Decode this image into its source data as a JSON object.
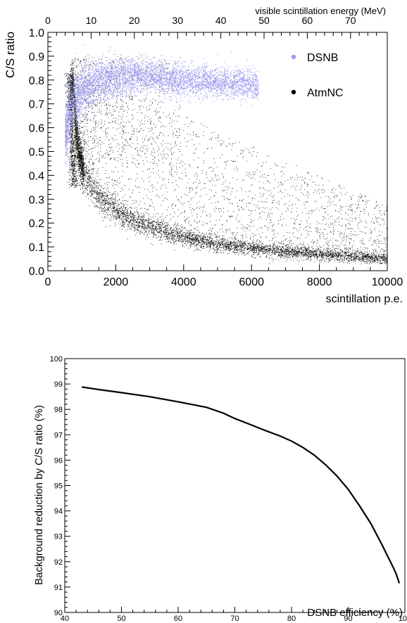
{
  "chart_data": [
    {
      "type": "scatter",
      "xlabel": "scintillation p.e.",
      "ylabel": "C/S ratio",
      "x2label": "visible scintillation energy (MeV)",
      "xlim": [
        0,
        10000
      ],
      "ylim": [
        0.0,
        1.0
      ],
      "x2lim": [
        0,
        78.5
      ],
      "xticks": [
        "0",
        "2000",
        "4000",
        "6000",
        "8000",
        "10000"
      ],
      "yticks": [
        "0.0",
        "0.1",
        "0.2",
        "0.3",
        "0.4",
        "0.5",
        "0.6",
        "0.7",
        "0.8",
        "0.9",
        "1.0"
      ],
      "x2ticks": [
        "0",
        "10",
        "20",
        "30",
        "40",
        "50",
        "60",
        "70"
      ],
      "legend_position": "top-right",
      "series": [
        {
          "name": "DSNB",
          "color": "#9a9aee",
          "description_points": [
            {
              "x": 550,
              "y": 0.58
            },
            {
              "x": 600,
              "y": 0.66
            },
            {
              "x": 700,
              "y": 0.7
            },
            {
              "x": 900,
              "y": 0.74
            },
            {
              "x": 1200,
              "y": 0.78
            },
            {
              "x": 1600,
              "y": 0.8
            },
            {
              "x": 2000,
              "y": 0.81
            },
            {
              "x": 2500,
              "y": 0.82
            },
            {
              "x": 3000,
              "y": 0.82
            },
            {
              "x": 3500,
              "y": 0.81
            },
            {
              "x": 4000,
              "y": 0.8
            },
            {
              "x": 4500,
              "y": 0.8
            },
            {
              "x": 5000,
              "y": 0.79
            },
            {
              "x": 5500,
              "y": 0.79
            },
            {
              "x": 6000,
              "y": 0.78
            }
          ]
        },
        {
          "name": "AtmNC",
          "color": "#000000",
          "description_points": [
            {
              "x": 750,
              "y": 0.78
            },
            {
              "x": 800,
              "y": 0.62
            },
            {
              "x": 900,
              "y": 0.5
            },
            {
              "x": 1000,
              "y": 0.44
            },
            {
              "x": 1200,
              "y": 0.37
            },
            {
              "x": 1500,
              "y": 0.31
            },
            {
              "x": 2000,
              "y": 0.25
            },
            {
              "x": 2500,
              "y": 0.21
            },
            {
              "x": 3000,
              "y": 0.18
            },
            {
              "x": 4000,
              "y": 0.14
            },
            {
              "x": 5000,
              "y": 0.11
            },
            {
              "x": 6000,
              "y": 0.095
            },
            {
              "x": 7000,
              "y": 0.08
            },
            {
              "x": 8000,
              "y": 0.07
            },
            {
              "x": 9000,
              "y": 0.06
            },
            {
              "x": 10000,
              "y": 0.05
            }
          ]
        }
      ]
    },
    {
      "type": "line",
      "xlabel": "DSNB efficiency (%)",
      "ylabel": "Background reduction by C/S ratio (%)",
      "xlim": [
        40,
        100
      ],
      "ylim": [
        90,
        100
      ],
      "xticks": [
        "40",
        "50",
        "60",
        "70",
        "80",
        "90",
        "100"
      ],
      "yticks": [
        "90",
        "91",
        "92",
        "93",
        "94",
        "95",
        "96",
        "97",
        "98",
        "99",
        "100"
      ],
      "series": [
        {
          "color": "#000000",
          "x": [
            43,
            46,
            50,
            55,
            60,
            65,
            68,
            70,
            73,
            75,
            78,
            80,
            82,
            84,
            86,
            88,
            90,
            92,
            94,
            96,
            97,
            98,
            98.5,
            99
          ],
          "y": [
            98.88,
            98.78,
            98.66,
            98.5,
            98.3,
            98.08,
            97.85,
            97.64,
            97.38,
            97.2,
            96.95,
            96.75,
            96.5,
            96.2,
            95.82,
            95.38,
            94.85,
            94.2,
            93.5,
            92.65,
            92.2,
            91.75,
            91.5,
            91.15
          ]
        }
      ]
    }
  ]
}
